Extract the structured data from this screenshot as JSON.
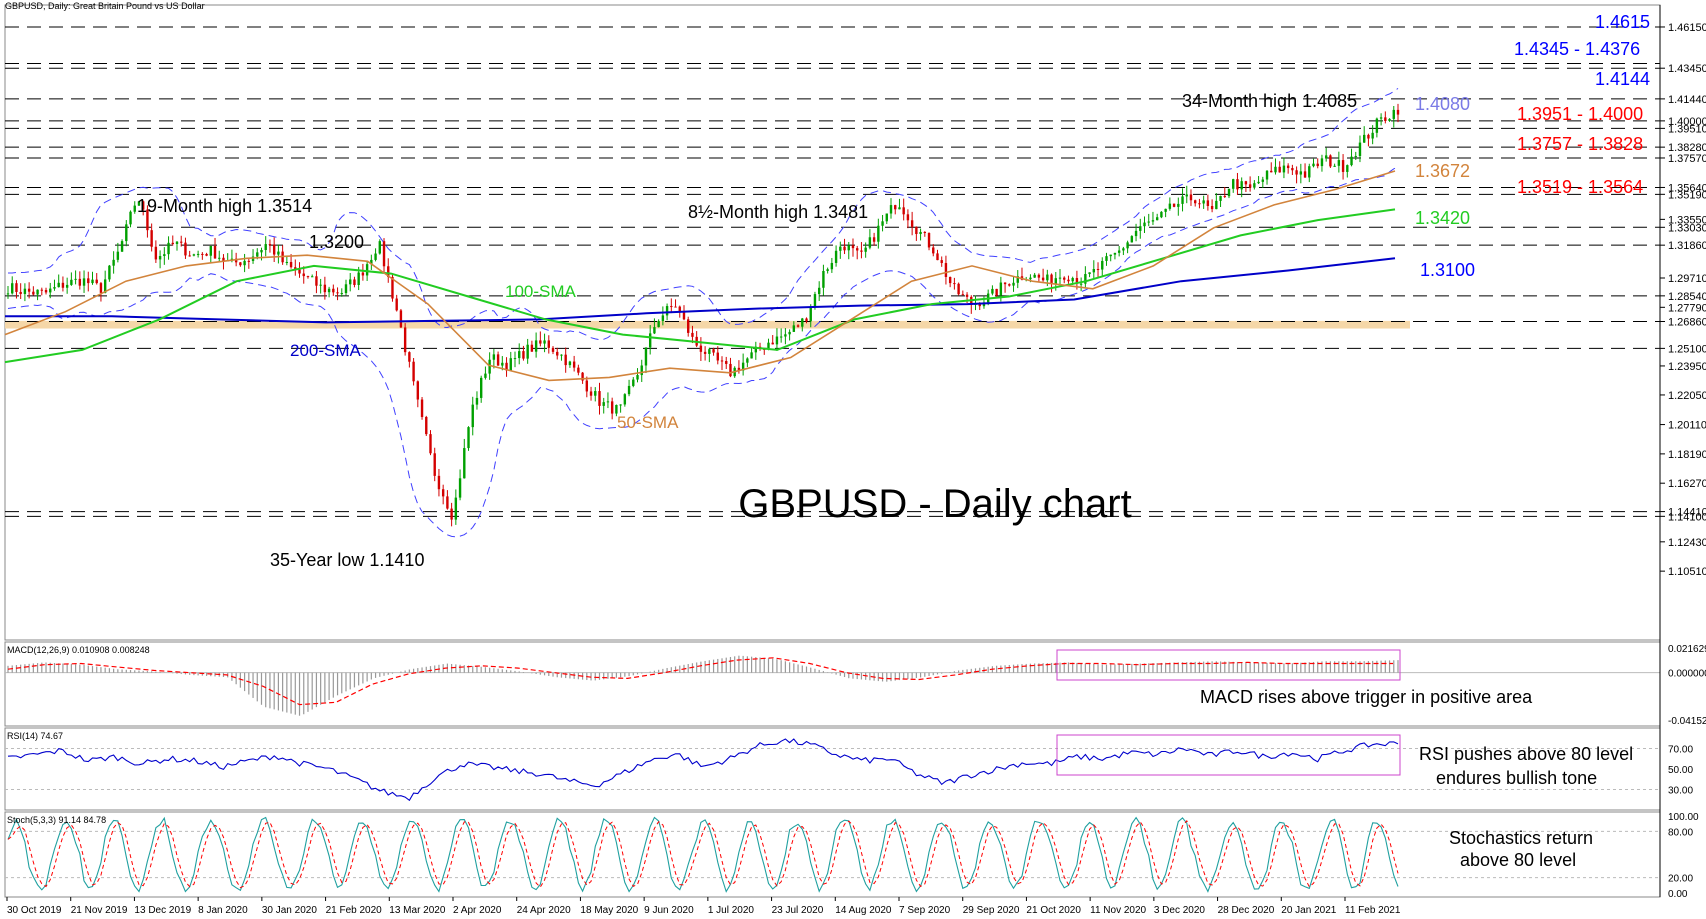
{
  "header": "GBPUSD, Daily: Great Britain Pound vs US Dollar",
  "chart_title": "GBPUSD - Daily chart",
  "colors": {
    "bull": "#00a000",
    "bear": "#d40000",
    "sma50": "#d2843c",
    "sma100": "#22cc22",
    "sma200": "#0000c8",
    "bb": "#4040ff",
    "red": "#ff0000",
    "blue": "#0000ff",
    "muted": "#7a7ae6",
    "orange": "#d2843c",
    "green": "#22cc22",
    "box": "#cc44cc",
    "zone": "#f5d7a8",
    "signal": "#ff0000",
    "rsi": "#0000cc",
    "stoch_k": "#20a0a0"
  },
  "chart_data": [
    {
      "type": "candlestick",
      "name": "GBPUSD daily",
      "price_axis": {
        "min": 1.06,
        "max": 1.47,
        "ticks": [
          "1.46150",
          "1.43450",
          "1.41440",
          "1.40000",
          "1.39510",
          "1.38280",
          "1.37570",
          "1.35640",
          "1.35190",
          "1.33550",
          "1.33030",
          "1.31860",
          "1.29710",
          "1.28540",
          "1.27790",
          "1.26860",
          "1.25100",
          "1.23950",
          "1.22050",
          "1.20110",
          "1.18190",
          "1.16270",
          "1.14410",
          "1.14100",
          "1.12430",
          "1.10510"
        ]
      },
      "x_labels": [
        "30 Oct 2019",
        "21 Nov 2019",
        "13 Dec 2019",
        "8 Jan 2020",
        "30 Jan 2020",
        "21 Feb 2020",
        "13 Mar 2020",
        "2 Apr 2020",
        "24 Apr 2020",
        "18 May 2020",
        "9 Jun 2020",
        "1 Jul 2020",
        "23 Jul 2020",
        "14 Aug 2020",
        "7 Sep 2020",
        "29 Sep 2020",
        "21 Oct 2020",
        "11 Nov 2020",
        "3 Dec 2020",
        "28 Dec 2020",
        "20 Jan 2021",
        "11 Feb 2021"
      ],
      "close_path": [
        1.291,
        1.288,
        1.287,
        1.293,
        1.296,
        1.29,
        1.315,
        1.3514,
        1.31,
        1.32,
        1.312,
        1.315,
        1.306,
        1.31,
        1.32,
        1.305,
        1.298,
        1.29,
        1.288,
        1.299,
        1.32,
        1.275,
        1.22,
        1.17,
        1.141,
        1.21,
        1.245,
        1.24,
        1.25,
        1.255,
        1.245,
        1.23,
        1.215,
        1.21,
        1.235,
        1.27,
        1.28,
        1.255,
        1.245,
        1.235,
        1.245,
        1.255,
        1.26,
        1.27,
        1.3,
        1.32,
        1.31,
        1.33,
        1.3481,
        1.33,
        1.315,
        1.29,
        1.28,
        1.285,
        1.295,
        1.3,
        1.295,
        1.3,
        1.295,
        1.305,
        1.315,
        1.33,
        1.335,
        1.345,
        1.35,
        1.34,
        1.36,
        1.355,
        1.365,
        1.37,
        1.365,
        1.375,
        1.37,
        1.385,
        1.4,
        1.408
      ],
      "sma50_label": "50-SMA",
      "sma100_label": "100-SMA",
      "sma200_label": "200-SMA",
      "sma50_path": [
        1.26,
        1.275,
        1.295,
        1.305,
        1.31,
        1.312,
        1.308,
        1.28,
        1.24,
        1.23,
        1.232,
        1.238,
        1.235,
        1.245,
        1.27,
        1.295,
        1.305,
        1.295,
        1.29,
        1.305,
        1.33,
        1.345,
        1.355,
        1.3672
      ],
      "sma100_path": [
        1.242,
        1.25,
        1.27,
        1.295,
        1.305,
        1.3,
        1.285,
        1.27,
        1.26,
        1.255,
        1.25,
        1.27,
        1.28,
        1.285,
        1.295,
        1.31,
        1.325,
        1.335,
        1.342
      ],
      "sma200_path": [
        1.272,
        1.272,
        1.27,
        1.268,
        1.269,
        1.27,
        1.274,
        1.277,
        1.279,
        1.28,
        1.283,
        1.295,
        1.302,
        1.31
      ],
      "horizontal_levels": [
        1.4615,
        1.4376,
        1.4345,
        1.4144,
        1.4,
        1.3951,
        1.3828,
        1.3757,
        1.3564,
        1.3519,
        1.3303,
        1.3186,
        1.2854,
        1.2686,
        1.251,
        1.1441,
        1.141
      ],
      "support_zone": [
        1.264,
        1.269
      ],
      "annotations": [
        {
          "text": "19-Month high 1.3514",
          "price": 1.3514
        },
        {
          "text": "1.3200",
          "price": 1.32
        },
        {
          "text": "8½-Month high 1.3481",
          "price": 1.3481
        },
        {
          "text": "34-Month high 1.4085",
          "price": 1.4085
        },
        {
          "text": "35-Year low 1.1410",
          "price": 1.141
        }
      ],
      "right_labels": [
        {
          "text": "1.4615",
          "color": "blue"
        },
        {
          "text": "1.4345 - 1.4376",
          "color": "blue"
        },
        {
          "text": "1.4144",
          "color": "blue"
        },
        {
          "text": "1.4080",
          "color": "muted"
        },
        {
          "text": "1.3951 - 1.4000",
          "color": "red"
        },
        {
          "text": "1.3757 - 1.3828",
          "color": "red"
        },
        {
          "text": "1.3672",
          "color": "orange"
        },
        {
          "text": "1.3519 - 1.3564",
          "color": "red"
        },
        {
          "text": "1.3420",
          "color": "green"
        },
        {
          "text": "1.3100",
          "color": "blue"
        }
      ]
    },
    {
      "type": "histogram",
      "name": "MACD",
      "header": "MACD(12,26,9) 0.010908 0.008248",
      "ticks": [
        "0.021629",
        "0.000000",
        "-0.041521"
      ],
      "range": [
        -0.041521,
        0.021629
      ],
      "note": "MACD rises above trigger in positive area",
      "values": [
        0.006,
        0.009,
        0.007,
        0.003,
        0.001,
        -0.002,
        -0.004,
        -0.03,
        -0.038,
        -0.02,
        -0.005,
        0.003,
        0.008,
        0.005,
        0.001,
        -0.004,
        -0.007,
        -0.003,
        0.004,
        0.01,
        0.015,
        0.012,
        0.004,
        -0.005,
        -0.008,
        -0.004,
        0.002,
        0.006,
        0.008,
        0.009,
        0.007,
        0.008,
        0.009,
        0.01,
        0.009,
        0.008,
        0.01,
        0.01,
        0.011
      ],
      "signal": [
        0.003,
        0.007,
        0.008,
        0.005,
        0.002,
        0.0,
        -0.002,
        -0.012,
        -0.028,
        -0.026,
        -0.01,
        -0.001,
        0.004,
        0.006,
        0.004,
        0.0,
        -0.004,
        -0.005,
        0.0,
        0.006,
        0.011,
        0.013,
        0.008,
        0.0,
        -0.005,
        -0.006,
        -0.002,
        0.003,
        0.006,
        0.008,
        0.008,
        0.007,
        0.008,
        0.008,
        0.009,
        0.008,
        0.008,
        0.008,
        0.008
      ]
    },
    {
      "type": "line",
      "name": "RSI",
      "header": "RSI(14) 74.67",
      "ticks": [
        "70.00",
        "50.00",
        "30.00"
      ],
      "range": [
        10,
        90
      ],
      "note": [
        "RSI pushes above 80 level",
        "endures bullish tone"
      ],
      "values": [
        60,
        64,
        68,
        58,
        62,
        55,
        60,
        58,
        52,
        58,
        63,
        55,
        50,
        40,
        28,
        22,
        42,
        55,
        52,
        48,
        45,
        38,
        34,
        46,
        58,
        65,
        52,
        60,
        72,
        78,
        74,
        64,
        58,
        60,
        45,
        36,
        44,
        50,
        56,
        55,
        62,
        60,
        66,
        64,
        70,
        63,
        68,
        62,
        66,
        60,
        68,
        74,
        75
      ]
    },
    {
      "type": "line",
      "name": "Stochastics",
      "header": "Stoch(5,3,3) 91.14 84.78",
      "ticks": [
        "100.00",
        "80.00",
        "20.00",
        "0.00"
      ],
      "range": [
        0,
        100
      ],
      "note": [
        "Stochastics return",
        "above 80 level"
      ]
    }
  ]
}
